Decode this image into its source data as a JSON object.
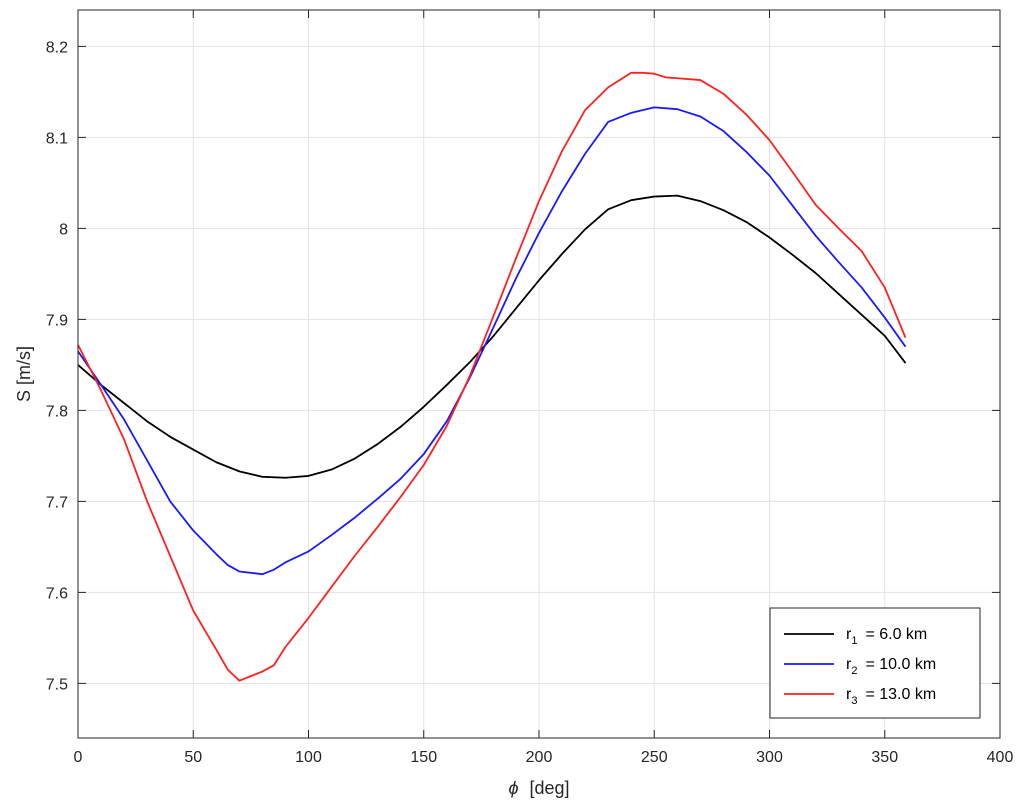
{
  "chart_data": {
    "type": "line",
    "xlabel_symbol": "ϕ",
    "xlabel_unit": "[deg]",
    "ylabel": "S [m/s]",
    "xlim": [
      0,
      400
    ],
    "ylim": [
      7.44,
      8.24
    ],
    "x_ticks": [
      0,
      50,
      100,
      150,
      200,
      250,
      300,
      350,
      400
    ],
    "y_ticks": [
      7.5,
      7.6,
      7.7,
      7.8,
      7.9,
      8.0,
      8.1,
      8.2
    ],
    "x_tick_labels": [
      "0",
      "50",
      "100",
      "150",
      "200",
      "250",
      "300",
      "350",
      "400"
    ],
    "y_tick_labels": [
      "7.5",
      "7.6",
      "7.7",
      "7.8",
      "7.9",
      "8",
      "8.1",
      "8.2"
    ],
    "grid": true,
    "legend_position": "bottom-right",
    "series": [
      {
        "legend_var": "r",
        "legend_sub": "1",
        "legend_rest": "= 6.0 km",
        "color": "#000000",
        "x": [
          0,
          10,
          20,
          30,
          40,
          50,
          60,
          70,
          80,
          90,
          100,
          110,
          120,
          130,
          140,
          150,
          160,
          170,
          180,
          190,
          200,
          210,
          220,
          230,
          240,
          250,
          260,
          270,
          280,
          290,
          300,
          310,
          320,
          330,
          340,
          350,
          359
        ],
        "y": [
          7.85,
          7.828,
          7.808,
          7.788,
          7.771,
          7.757,
          7.743,
          7.733,
          7.727,
          7.726,
          7.728,
          7.735,
          7.747,
          7.763,
          7.782,
          7.804,
          7.828,
          7.853,
          7.881,
          7.912,
          7.943,
          7.972,
          7.999,
          8.021,
          8.031,
          8.035,
          8.036,
          8.03,
          8.02,
          8.007,
          7.99,
          7.971,
          7.951,
          7.928,
          7.905,
          7.882,
          7.852
        ]
      },
      {
        "legend_var": "r",
        "legend_sub": "2",
        "legend_rest": "= 10.0 km",
        "color": "#1a1aff",
        "x": [
          0,
          10,
          20,
          30,
          40,
          50,
          60,
          65,
          70,
          80,
          85,
          90,
          100,
          110,
          120,
          130,
          140,
          150,
          160,
          170,
          180,
          190,
          200,
          210,
          220,
          230,
          240,
          250,
          260,
          270,
          280,
          290,
          300,
          310,
          320,
          330,
          340,
          350,
          359
        ],
        "y": [
          7.865,
          7.828,
          7.79,
          7.745,
          7.7,
          7.668,
          7.642,
          7.63,
          7.623,
          7.62,
          7.625,
          7.633,
          7.645,
          7.663,
          7.682,
          7.703,
          7.725,
          7.752,
          7.788,
          7.836,
          7.89,
          7.945,
          7.995,
          8.041,
          8.082,
          8.117,
          8.127,
          8.133,
          8.131,
          8.123,
          8.107,
          8.084,
          8.058,
          8.025,
          7.992,
          7.963,
          7.935,
          7.902,
          7.87
        ]
      },
      {
        "legend_var": "r",
        "legend_sub": "3",
        "legend_rest": "= 13.0 km",
        "color": "#ff2020",
        "x": [
          0,
          10,
          20,
          30,
          40,
          50,
          60,
          65,
          70,
          75,
          80,
          85,
          90,
          100,
          110,
          120,
          130,
          140,
          150,
          160,
          170,
          180,
          190,
          200,
          210,
          220,
          230,
          240,
          245,
          250,
          255,
          260,
          270,
          280,
          290,
          300,
          310,
          320,
          330,
          340,
          350,
          359
        ],
        "y": [
          7.872,
          7.822,
          7.768,
          7.7,
          7.64,
          7.58,
          7.537,
          7.515,
          7.503,
          7.508,
          7.513,
          7.52,
          7.54,
          7.572,
          7.606,
          7.64,
          7.672,
          7.705,
          7.74,
          7.783,
          7.838,
          7.902,
          7.967,
          8.03,
          8.085,
          8.13,
          8.155,
          8.171,
          8.171,
          8.17,
          8.166,
          8.165,
          8.163,
          8.148,
          8.125,
          8.097,
          8.062,
          8.026,
          8.0,
          7.975,
          7.935,
          7.88
        ]
      }
    ]
  }
}
